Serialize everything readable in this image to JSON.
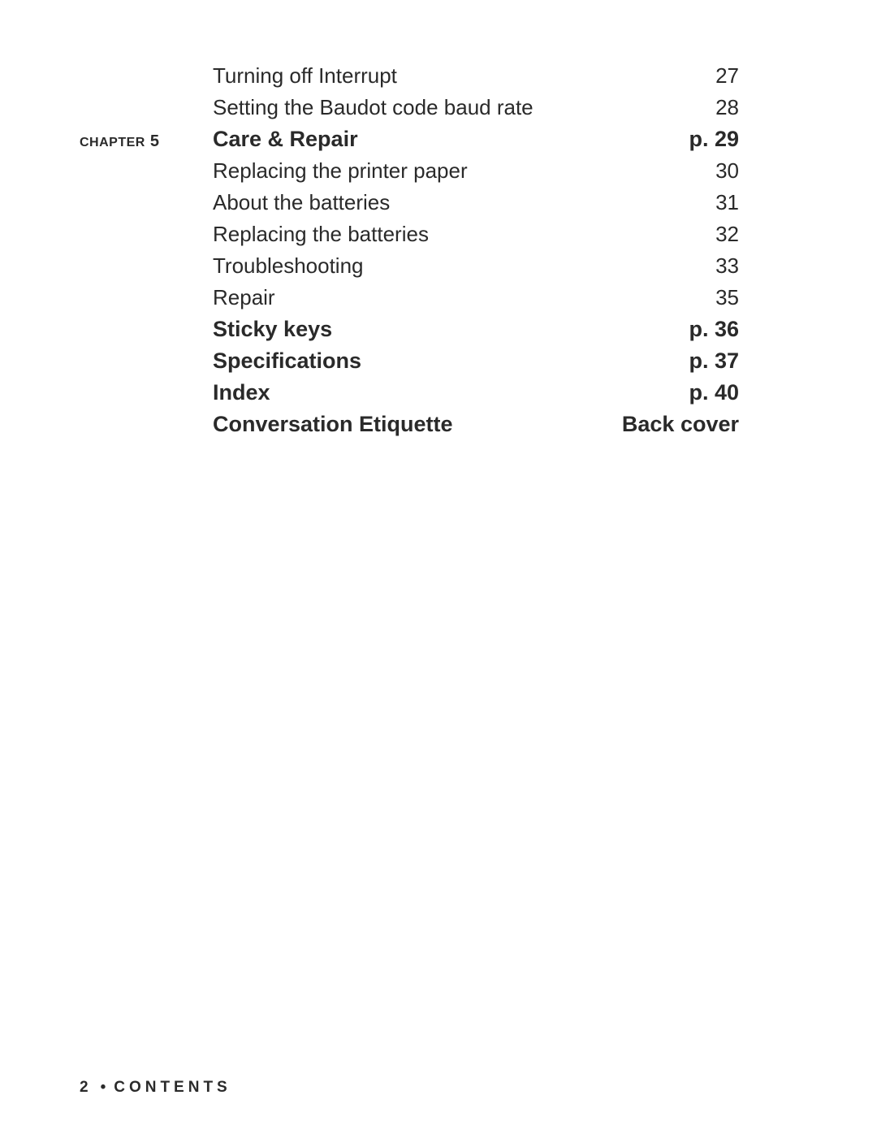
{
  "entries": [
    {
      "chapter": "",
      "title": "Turning off Interrupt",
      "page": "27",
      "bold": false
    },
    {
      "chapter": "",
      "title": "Setting the Baudot code baud rate",
      "page": "28",
      "bold": false
    },
    {
      "chapter": "CHAPTER 5",
      "title": "Care & Repair",
      "page": "p. 29",
      "bold": true
    },
    {
      "chapter": "",
      "title": "Replacing the printer paper",
      "page": "30",
      "bold": false
    },
    {
      "chapter": "",
      "title": "About the batteries",
      "page": "31",
      "bold": false
    },
    {
      "chapter": "",
      "title": "Replacing the batteries",
      "page": "32",
      "bold": false
    },
    {
      "chapter": "",
      "title": "Troubleshooting",
      "page": "33",
      "bold": false
    },
    {
      "chapter": "",
      "title": "Repair",
      "page": "35",
      "bold": false
    },
    {
      "chapter": "",
      "title": "Sticky keys",
      "page": "p. 36",
      "bold": true
    },
    {
      "chapter": "",
      "title": "Specifications",
      "page": "p. 37",
      "bold": true
    },
    {
      "chapter": "",
      "title": "Index",
      "page": "p. 40",
      "bold": true
    },
    {
      "chapter": "",
      "title": "Conversation Etiquette",
      "page": "Back cover",
      "bold": true
    }
  ],
  "footer": {
    "page_number": "2",
    "bullet": "•",
    "section": "CONTENTS"
  },
  "colors": {
    "text": "#2a2a2a",
    "background": "#ffffff"
  },
  "fonts": {
    "body_size": 26,
    "bold_size": 27,
    "chapter_size": 20,
    "footer_size": 19
  }
}
